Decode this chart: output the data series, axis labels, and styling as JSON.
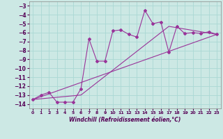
{
  "xlabel": "Windchill (Refroidissement éolien,°C)",
  "bg_color": "#cce8e4",
  "line_color": "#993399",
  "grid_color": "#aad8d4",
  "xlim": [
    -0.5,
    23.5
  ],
  "ylim": [
    -14.5,
    -2.5
  ],
  "yticks": [
    -3,
    -4,
    -5,
    -6,
    -7,
    -8,
    -9,
    -10,
    -11,
    -12,
    -13,
    -14
  ],
  "xticks": [
    0,
    1,
    2,
    3,
    4,
    5,
    6,
    7,
    8,
    9,
    10,
    11,
    12,
    13,
    14,
    15,
    16,
    17,
    18,
    19,
    20,
    21,
    22,
    23
  ],
  "series1_x": [
    0,
    1,
    2,
    3,
    4,
    5,
    6,
    7,
    8,
    9,
    10,
    11,
    12,
    13,
    14,
    15,
    16,
    17,
    18,
    19,
    20,
    21,
    22,
    23
  ],
  "series1_y": [
    -13.5,
    -13.0,
    -12.7,
    -13.8,
    -13.8,
    -13.8,
    -12.3,
    -6.7,
    -9.2,
    -9.2,
    -5.8,
    -5.7,
    -6.2,
    -6.5,
    -3.5,
    -5.0,
    -4.8,
    -8.2,
    -5.3,
    -6.1,
    -6.0,
    -6.1,
    -5.9,
    -6.2
  ],
  "series2_x": [
    0,
    23
  ],
  "series2_y": [
    -13.5,
    -6.2
  ],
  "series3_x": [
    0,
    6,
    17,
    23
  ],
  "series3_y": [
    -13.5,
    -13.0,
    -5.3,
    -6.2
  ]
}
